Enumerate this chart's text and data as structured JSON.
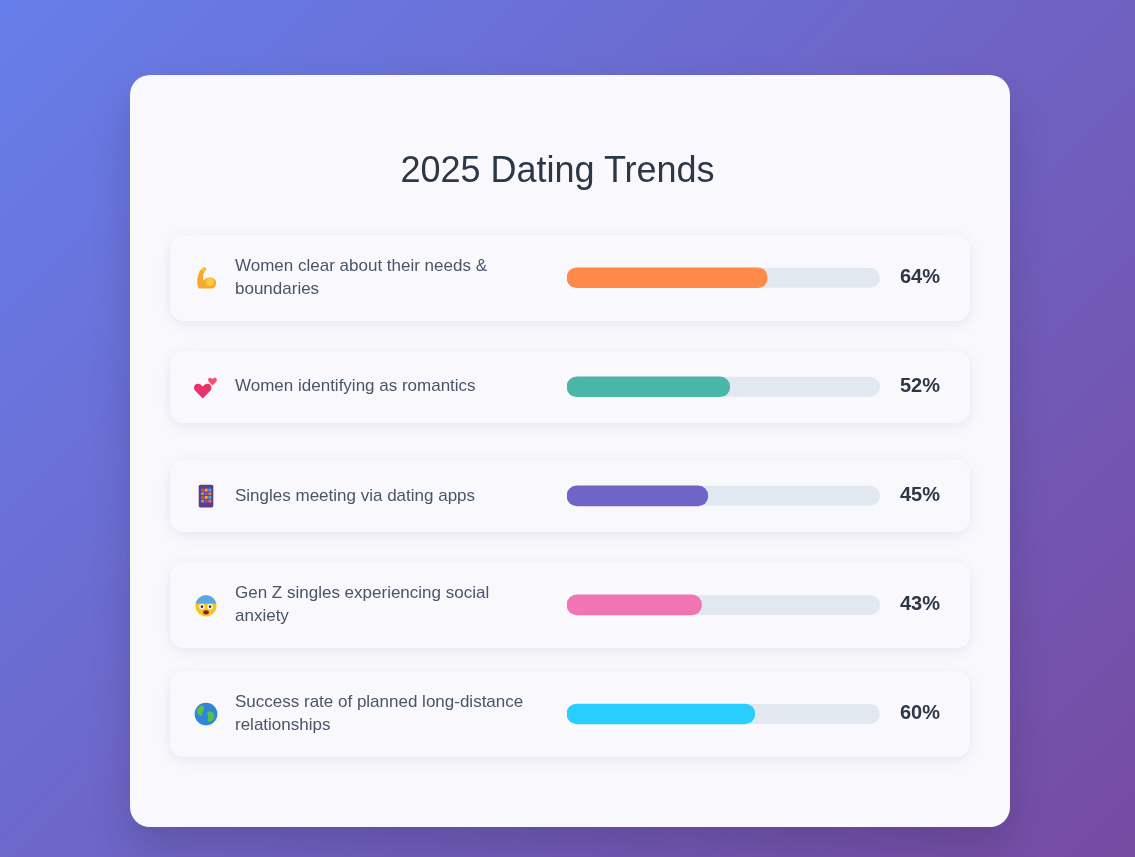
{
  "chart_data": {
    "type": "bar",
    "orientation": "horizontal",
    "title": "2025 Dating Trends",
    "categories": [
      "Women clear about their needs & boundaries",
      "Women identifying as romantics",
      "Singles meeting via dating apps",
      "Gen Z singles experiencing social anxiety",
      "Success rate of planned long-distance relationships"
    ],
    "values": [
      64,
      52,
      45,
      43,
      60
    ],
    "value_labels": [
      "64%",
      "52%",
      "45%",
      "43%",
      "60%"
    ],
    "colors": [
      "#ff8a4a",
      "#49b6a8",
      "#6e65c6",
      "#f275b3",
      "#28cffe"
    ],
    "xlim": [
      0,
      100
    ],
    "tick_labels": "y"
  }
}
